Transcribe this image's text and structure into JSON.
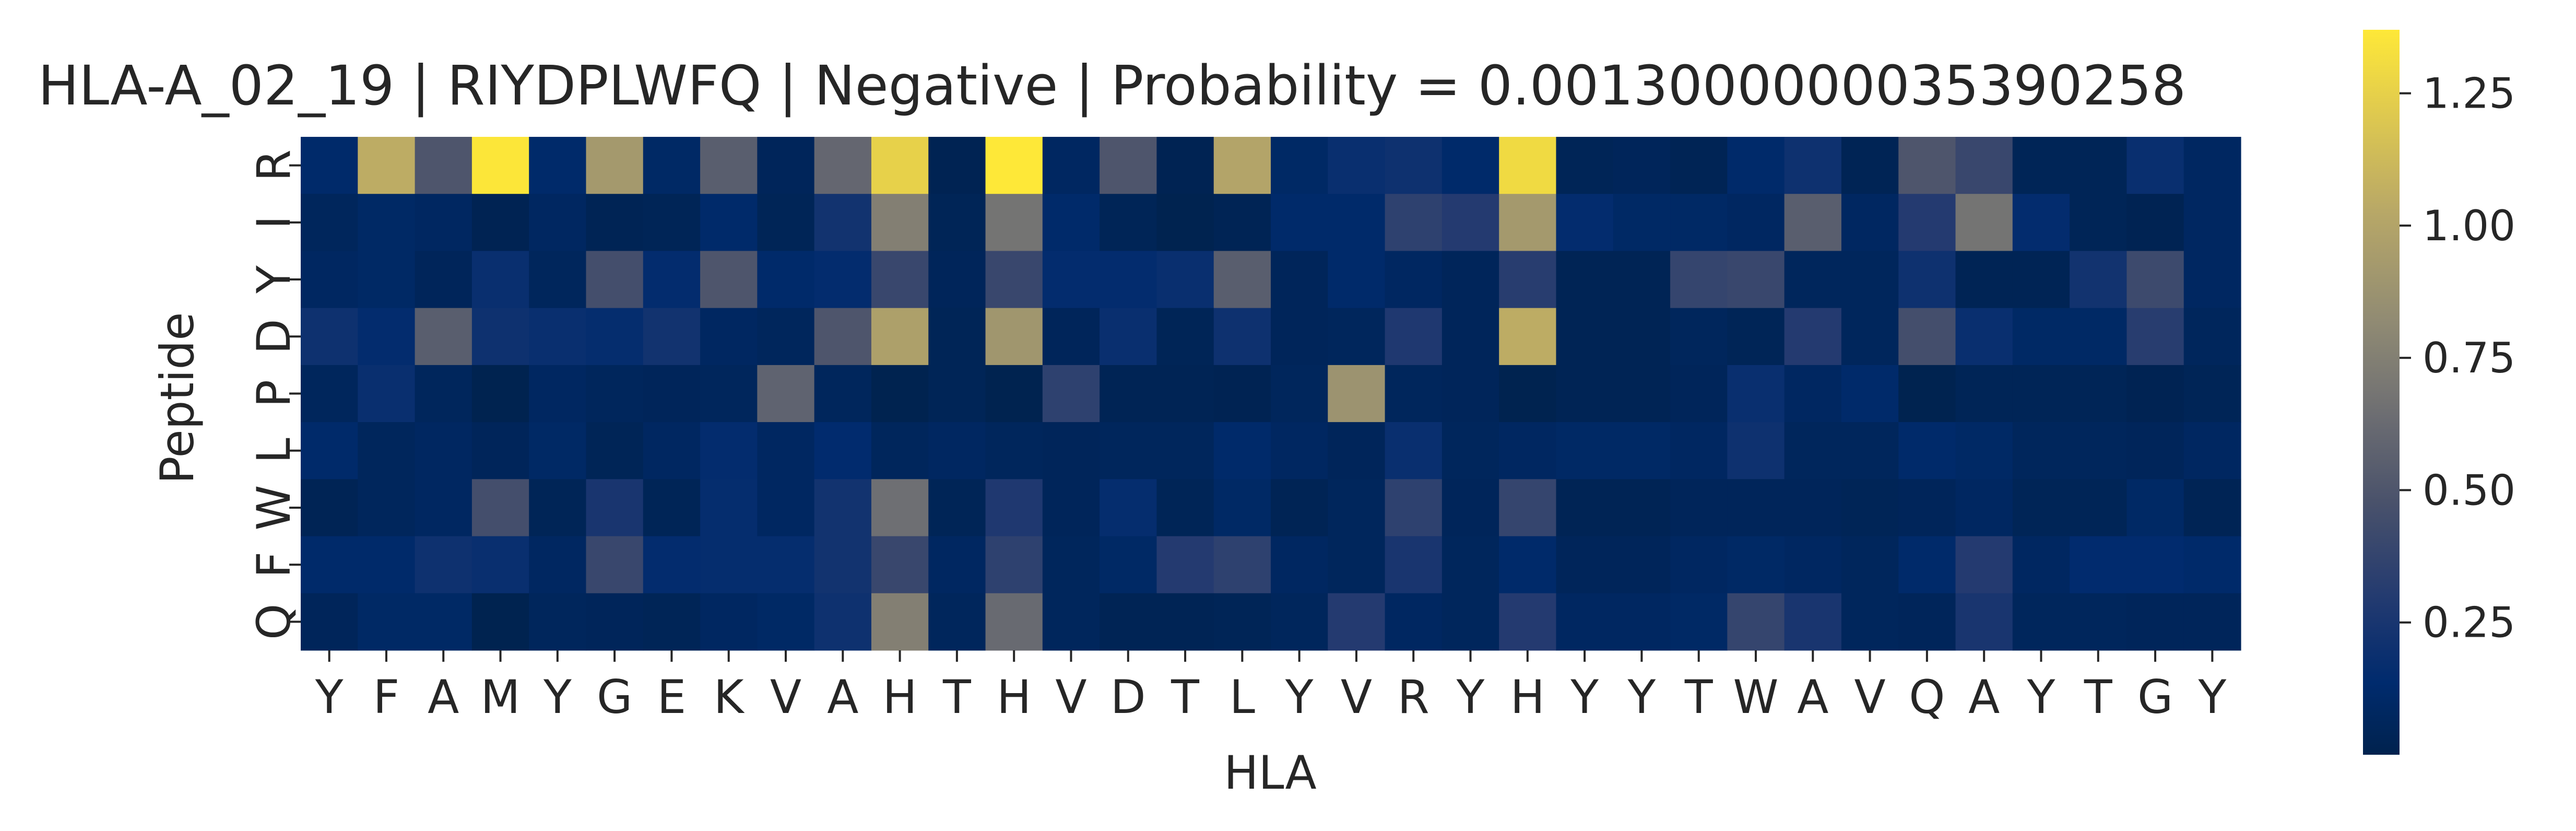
{
  "chart_data": {
    "type": "heatmap",
    "title": "HLA-A_02_19 | RIYDPLWFQ | Negative | Probability = 0.0013000000035390258",
    "xlabel": "HLA",
    "ylabel": "Peptide",
    "x": [
      "Y",
      "F",
      "A",
      "M",
      "Y",
      "G",
      "E",
      "K",
      "V",
      "A",
      "H",
      "T",
      "H",
      "V",
      "D",
      "T",
      "L",
      "Y",
      "V",
      "R",
      "Y",
      "H",
      "Y",
      "Y",
      "T",
      "W",
      "A",
      "V",
      "Q",
      "A",
      "Y",
      "T",
      "G",
      "Y"
    ],
    "y": [
      "R",
      "I",
      "Y",
      "D",
      "P",
      "L",
      "W",
      "F",
      "Q"
    ],
    "colormap": "cividis",
    "colorbar": {
      "min": 0.0,
      "max": 1.37,
      "ticks": [
        0.25,
        0.5,
        0.75,
        1.0,
        1.25
      ],
      "tick_labels": [
        "0.25",
        "0.50",
        "0.75",
        "1.00",
        "1.25"
      ]
    },
    "values": [
      [
        0.12,
        1.05,
        0.5,
        1.36,
        0.12,
        0.92,
        0.1,
        0.55,
        0.05,
        0.6,
        1.25,
        0.02,
        1.37,
        0.08,
        0.5,
        0.02,
        1.0,
        0.1,
        0.18,
        0.2,
        0.12,
        1.3,
        0.04,
        0.05,
        0.03,
        0.12,
        0.2,
        0.03,
        0.5,
        0.4,
        0.04,
        0.04,
        0.18,
        0.08
      ],
      [
        0.06,
        0.1,
        0.08,
        0.02,
        0.08,
        0.03,
        0.04,
        0.12,
        0.04,
        0.22,
        0.75,
        0.04,
        0.68,
        0.12,
        0.04,
        0.01,
        0.03,
        0.12,
        0.12,
        0.35,
        0.3,
        0.92,
        0.15,
        0.1,
        0.1,
        0.08,
        0.55,
        0.08,
        0.3,
        0.68,
        0.15,
        0.04,
        0.02,
        0.08
      ],
      [
        0.08,
        0.1,
        0.05,
        0.18,
        0.06,
        0.45,
        0.15,
        0.5,
        0.12,
        0.15,
        0.4,
        0.05,
        0.4,
        0.15,
        0.15,
        0.18,
        0.55,
        0.05,
        0.12,
        0.08,
        0.05,
        0.32,
        0.03,
        0.03,
        0.38,
        0.4,
        0.06,
        0.06,
        0.2,
        0.03,
        0.03,
        0.22,
        0.42,
        0.08
      ],
      [
        0.2,
        0.15,
        0.55,
        0.2,
        0.18,
        0.16,
        0.22,
        0.08,
        0.06,
        0.5,
        0.97,
        0.04,
        0.9,
        0.05,
        0.18,
        0.04,
        0.2,
        0.05,
        0.06,
        0.28,
        0.05,
        1.05,
        0.03,
        0.03,
        0.06,
        0.04,
        0.3,
        0.06,
        0.45,
        0.18,
        0.1,
        0.1,
        0.32,
        0.06
      ],
      [
        0.06,
        0.18,
        0.06,
        0.01,
        0.08,
        0.06,
        0.05,
        0.06,
        0.58,
        0.06,
        0.01,
        0.04,
        0.01,
        0.35,
        0.03,
        0.03,
        0.02,
        0.06,
        0.88,
        0.06,
        0.05,
        0.01,
        0.03,
        0.03,
        0.05,
        0.18,
        0.08,
        0.12,
        0.01,
        0.04,
        0.04,
        0.04,
        0.02,
        0.04
      ],
      [
        0.12,
        0.06,
        0.08,
        0.05,
        0.1,
        0.04,
        0.08,
        0.15,
        0.08,
        0.14,
        0.06,
        0.08,
        0.06,
        0.05,
        0.06,
        0.06,
        0.12,
        0.08,
        0.05,
        0.18,
        0.06,
        0.08,
        0.1,
        0.1,
        0.08,
        0.2,
        0.06,
        0.06,
        0.12,
        0.1,
        0.06,
        0.06,
        0.05,
        0.08
      ],
      [
        0.03,
        0.06,
        0.08,
        0.45,
        0.04,
        0.25,
        0.04,
        0.16,
        0.08,
        0.22,
        0.65,
        0.04,
        0.28,
        0.05,
        0.16,
        0.04,
        0.1,
        0.03,
        0.06,
        0.35,
        0.05,
        0.38,
        0.03,
        0.03,
        0.05,
        0.05,
        0.05,
        0.04,
        0.05,
        0.08,
        0.04,
        0.04,
        0.1,
        0.03
      ],
      [
        0.12,
        0.12,
        0.2,
        0.18,
        0.08,
        0.4,
        0.15,
        0.16,
        0.16,
        0.22,
        0.4,
        0.08,
        0.35,
        0.06,
        0.1,
        0.3,
        0.35,
        0.08,
        0.06,
        0.25,
        0.06,
        0.12,
        0.05,
        0.05,
        0.08,
        0.1,
        0.08,
        0.06,
        0.12,
        0.3,
        0.08,
        0.14,
        0.14,
        0.12
      ],
      [
        0.05,
        0.1,
        0.1,
        0.01,
        0.06,
        0.05,
        0.04,
        0.08,
        0.1,
        0.2,
        0.75,
        0.06,
        0.62,
        0.06,
        0.03,
        0.03,
        0.04,
        0.06,
        0.3,
        0.08,
        0.06,
        0.3,
        0.08,
        0.08,
        0.1,
        0.38,
        0.25,
        0.06,
        0.05,
        0.25,
        0.06,
        0.06,
        0.05,
        0.05
      ]
    ]
  }
}
